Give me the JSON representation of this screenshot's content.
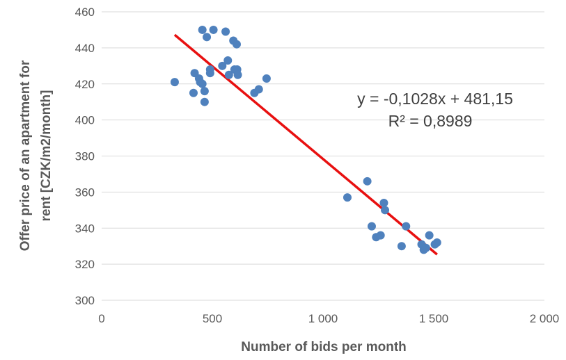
{
  "chart_data": {
    "type": "scatter",
    "xlabel": "Number of bids per month",
    "ylabel_lines": [
      "Offer price of an apartment for",
      "rent [CZK/m2/month]"
    ],
    "xlim": [
      0,
      2000
    ],
    "ylim": [
      300,
      460
    ],
    "x_ticks": [
      0,
      500,
      1000,
      1500,
      2000
    ],
    "x_tick_labels": [
      "0",
      "500",
      "1 000",
      "1 500",
      "2 000"
    ],
    "y_ticks": [
      300,
      320,
      340,
      360,
      380,
      400,
      420,
      440,
      460
    ],
    "y_tick_labels": [
      "300",
      "320",
      "340",
      "360",
      "380",
      "400",
      "420",
      "440",
      "460"
    ],
    "grid": "horizontal",
    "marker_color": "#4f81bd",
    "trendline_color": "#e81010",
    "points": [
      {
        "x": 330,
        "y": 421
      },
      {
        "x": 415,
        "y": 415
      },
      {
        "x": 420,
        "y": 426
      },
      {
        "x": 440,
        "y": 423
      },
      {
        "x": 445,
        "y": 421
      },
      {
        "x": 455,
        "y": 420
      },
      {
        "x": 455,
        "y": 450
      },
      {
        "x": 465,
        "y": 416
      },
      {
        "x": 465,
        "y": 410
      },
      {
        "x": 475,
        "y": 446
      },
      {
        "x": 490,
        "y": 428
      },
      {
        "x": 490,
        "y": 426
      },
      {
        "x": 505,
        "y": 450
      },
      {
        "x": 545,
        "y": 430
      },
      {
        "x": 560,
        "y": 449
      },
      {
        "x": 570,
        "y": 433
      },
      {
        "x": 575,
        "y": 425
      },
      {
        "x": 595,
        "y": 444
      },
      {
        "x": 600,
        "y": 428
      },
      {
        "x": 610,
        "y": 442
      },
      {
        "x": 612,
        "y": 428
      },
      {
        "x": 615,
        "y": 425
      },
      {
        "x": 690,
        "y": 415
      },
      {
        "x": 710,
        "y": 417
      },
      {
        "x": 745,
        "y": 423
      },
      {
        "x": 1110,
        "y": 357
      },
      {
        "x": 1200,
        "y": 366
      },
      {
        "x": 1220,
        "y": 341
      },
      {
        "x": 1240,
        "y": 335
      },
      {
        "x": 1260,
        "y": 336
      },
      {
        "x": 1275,
        "y": 354
      },
      {
        "x": 1280,
        "y": 350
      },
      {
        "x": 1355,
        "y": 330
      },
      {
        "x": 1375,
        "y": 341
      },
      {
        "x": 1445,
        "y": 331
      },
      {
        "x": 1455,
        "y": 328
      },
      {
        "x": 1465,
        "y": 329
      },
      {
        "x": 1480,
        "y": 336
      },
      {
        "x": 1505,
        "y": 331
      },
      {
        "x": 1515,
        "y": 332
      }
    ],
    "trendline": {
      "slope": -0.1028,
      "intercept": 481.15,
      "x_start": 330,
      "x_end": 1515,
      "equation_label": "y = -0,1028x + 481,15",
      "r2_label": "R² = 0,8989"
    }
  }
}
